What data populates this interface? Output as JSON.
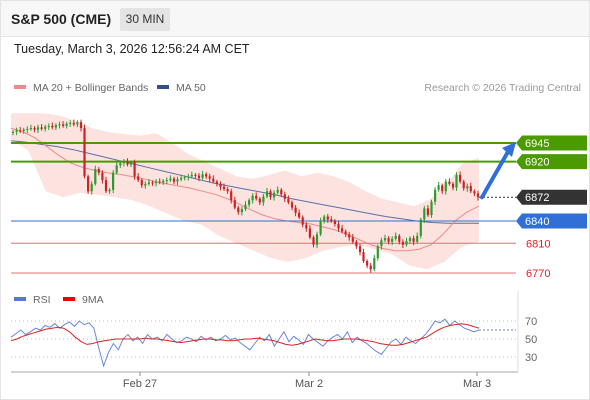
{
  "header": {
    "symbol": "S&P 500 (CME)",
    "timeframe": "30 MIN",
    "datetime": "Tuesday, March 3, 2026 12:56:24 AM CET"
  },
  "chart_data": {
    "type": "candlestick",
    "price_legend": [
      {
        "label": "MA 20 + Bollinger Bands",
        "color": "#f08a8a"
      },
      {
        "label": "MA 50",
        "color": "#2f4f8f"
      }
    ],
    "copyright": "Research © 2026 Trading Central",
    "price_levels": [
      {
        "label": "6945",
        "value": 6945,
        "kind": "resistance",
        "color": "#4a9a00"
      },
      {
        "label": "6920",
        "value": 6920,
        "kind": "resistance",
        "color": "#4a9a00"
      },
      {
        "label": "6872",
        "value": 6872,
        "kind": "last",
        "color": "#333333"
      },
      {
        "label": "6840",
        "value": 6840,
        "kind": "pivot",
        "color": "#2f6fd6"
      },
      {
        "label": "6810",
        "value": 6810,
        "kind": "support",
        "color": "#e07070"
      },
      {
        "label": "6770",
        "value": 6770,
        "kind": "support",
        "color": "#e07070"
      }
    ],
    "price_closes": [
      6960,
      6962,
      6961,
      6963,
      6964,
      6965,
      6963,
      6966,
      6964,
      6967,
      6968,
      6966,
      6969,
      6970,
      6968,
      6971,
      6972,
      6970,
      6973,
      6965,
      6900,
      6880,
      6890,
      6910,
      6905,
      6895,
      6880,
      6882,
      6905,
      6915,
      6918,
      6920,
      6916,
      6919,
      6900,
      6895,
      6888,
      6890,
      6892,
      6891,
      6893,
      6892,
      6894,
      6895,
      6897,
      6893,
      6896,
      6898,
      6899,
      6900,
      6902,
      6901,
      6898,
      6903,
      6900,
      6897,
      6893,
      6890,
      6886,
      6883,
      6880,
      6868,
      6858,
      6852,
      6856,
      6862,
      6868,
      6874,
      6870,
      6865,
      6873,
      6880,
      6872,
      6878,
      6882,
      6876,
      6870,
      6865,
      6858,
      6851,
      6845,
      6835,
      6830,
      6818,
      6808,
      6822,
      6840,
      6846,
      6842,
      6840,
      6836,
      6830,
      6826,
      6822,
      6818,
      6812,
      6806,
      6798,
      6786,
      6780,
      6775,
      6790,
      6806,
      6814,
      6817,
      6812,
      6816,
      6820,
      6812,
      6808,
      6813,
      6817,
      6812,
      6820,
      6842,
      6857,
      6848,
      6866,
      6882,
      6888,
      6880,
      6893,
      6890,
      6885,
      6902,
      6893,
      6884,
      6887,
      6880,
      6877,
      6872
    ],
    "ma20_points": [
      6965,
      6960,
      6952,
      6940,
      6928,
      6918,
      6912,
      6908,
      6905,
      6903,
      6900,
      6897,
      6893,
      6890,
      6887,
      6884,
      6880,
      6876,
      6870,
      6863,
      6855,
      6848,
      6843,
      6840,
      6838,
      6836,
      6832,
      6828,
      6822,
      6815,
      6808,
      6803,
      6800,
      6800,
      6802,
      6808,
      6822,
      6840,
      6852,
      6860
    ],
    "ma50_points": [
      6948,
      6946,
      6943,
      6940,
      6936,
      6931,
      6926,
      6921,
      6916,
      6911,
      6906,
      6901,
      6896,
      6891,
      6887,
      6883,
      6879,
      6875,
      6870,
      6866,
      6862,
      6858,
      6854,
      6850,
      6846,
      6843,
      6840,
      6838,
      6837,
      6837,
      6837
    ],
    "bb_upper": [
      6985,
      6985,
      6985,
      6982,
      6975,
      6965,
      6960,
      6957,
      6955,
      6958,
      6945,
      6930,
      6920,
      6910,
      6900,
      6897,
      6902,
      6908,
      6900,
      6905,
      6900,
      6892,
      6880,
      6870,
      6865,
      6860,
      6870,
      6890,
      6918,
      6925
    ],
    "bb_lower": [
      6950,
      6935,
      6880,
      6872,
      6878,
      6875,
      6872,
      6868,
      6860,
      6850,
      6840,
      6835,
      6820,
      6810,
      6800,
      6790,
      6785,
      6790,
      6800,
      6805,
      6808,
      6802,
      6795,
      6780,
      6775,
      6785,
      6805,
      6812
    ],
    "projection": {
      "from": 6872,
      "to": 6945,
      "color": "#2f6fd6"
    },
    "y_range": [
      6755,
      7000
    ],
    "x_ticks": [
      "Feb 27",
      "Mar 2",
      "Mar 3"
    ],
    "rsi": {
      "legend": [
        {
          "label": "RSI",
          "color": "#5577dd"
        },
        {
          "label": "9MA",
          "color": "#ee0000"
        }
      ],
      "y_ticks": [
        "70",
        "50",
        "30"
      ],
      "ylim": [
        20,
        80
      ],
      "rsi_values": [
        52,
        56,
        60,
        55,
        58,
        62,
        60,
        65,
        63,
        67,
        62,
        66,
        69,
        64,
        70,
        66,
        68,
        62,
        40,
        20,
        35,
        45,
        38,
        50,
        55,
        48,
        52,
        45,
        55,
        50,
        52,
        48,
        55,
        50,
        46,
        48,
        52,
        50,
        47,
        53,
        49,
        52,
        48,
        50,
        54,
        49,
        51,
        46,
        42,
        38,
        45,
        52,
        48,
        55,
        42,
        50,
        58,
        47,
        53,
        49,
        44,
        55,
        50,
        46,
        42,
        48,
        52,
        55,
        50,
        58,
        46,
        52,
        48,
        45,
        40,
        36,
        33,
        40,
        47,
        50,
        44,
        52,
        48,
        45,
        50,
        55,
        62,
        70,
        68,
        72,
        65,
        70,
        66,
        62,
        60,
        58,
        60
      ],
      "ma9_values": [
        48,
        50,
        53,
        55,
        57,
        59,
        61,
        62,
        63,
        62,
        58,
        52,
        47,
        44,
        45,
        47,
        48,
        49,
        50,
        50,
        50,
        50,
        50,
        51,
        50,
        50,
        49,
        48,
        47,
        46,
        47,
        48,
        49,
        50,
        50,
        49,
        49,
        48,
        48,
        49,
        50,
        50,
        51,
        50,
        49,
        48,
        46,
        44,
        43,
        44,
        46,
        48,
        50,
        49,
        48,
        48,
        49,
        50,
        50,
        50,
        49,
        48,
        47,
        45,
        44,
        43,
        43,
        44,
        46,
        48,
        50,
        52,
        56,
        60,
        63,
        65,
        66,
        67,
        66,
        64,
        62
      ]
    }
  }
}
